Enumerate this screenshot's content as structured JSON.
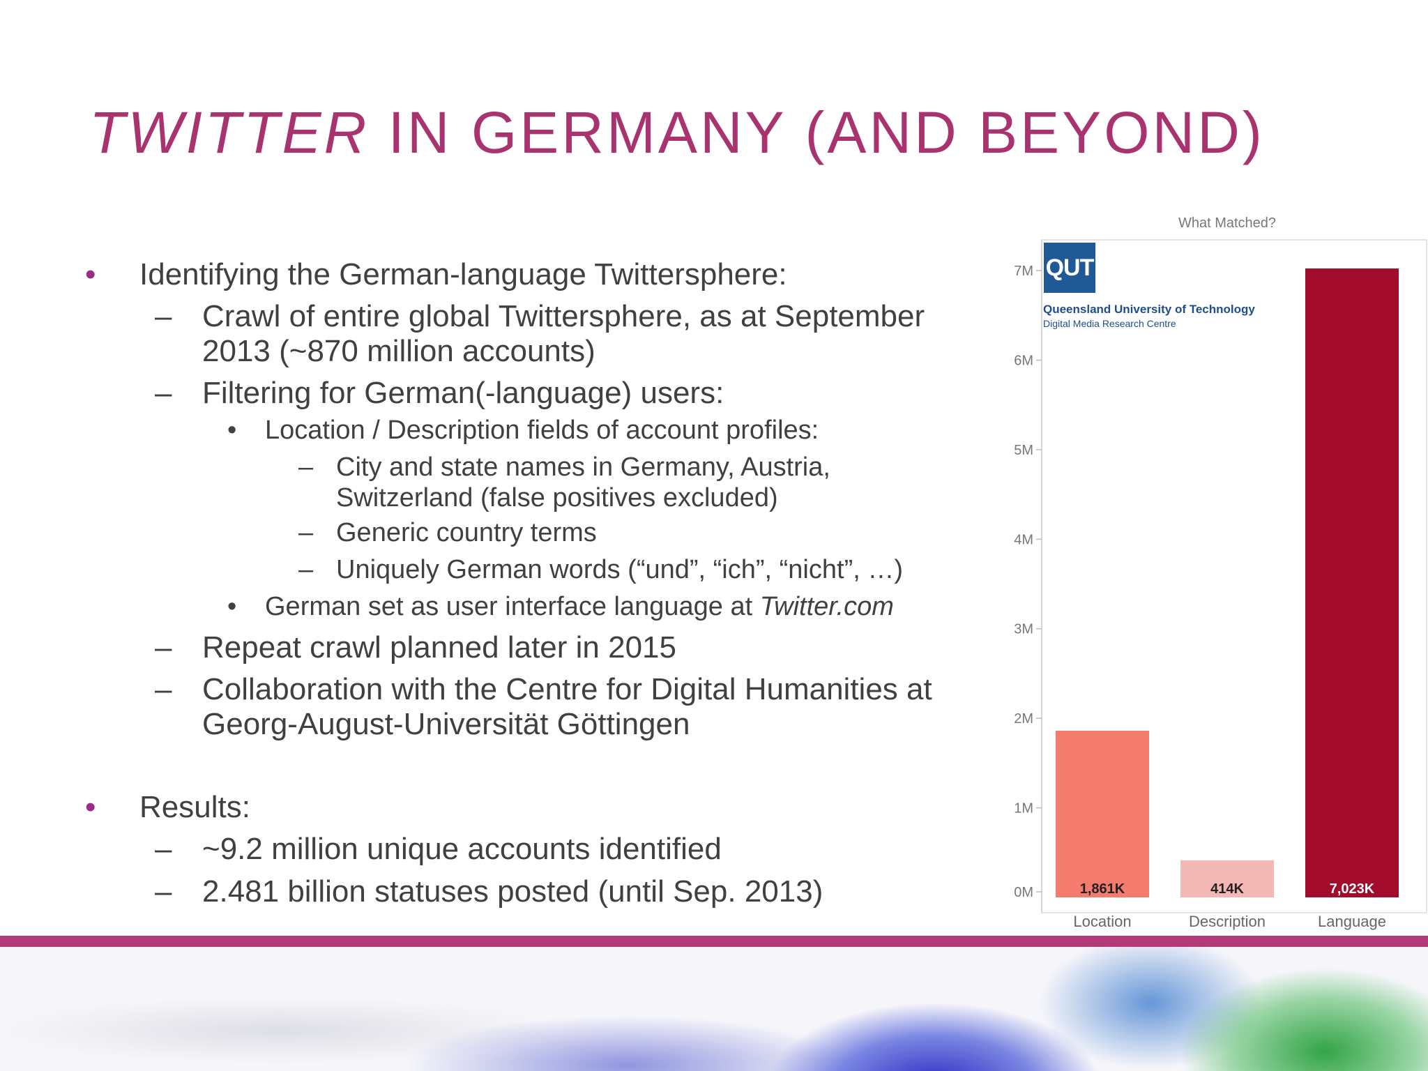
{
  "slide": {
    "title_italic": "TWITTER",
    "title_rest": " IN GERMANY (AND BEYOND)",
    "accent_color": "#a8336f",
    "bullets": [
      {
        "level": 1,
        "text": "Identifying the German-language Twittersphere:"
      },
      {
        "level": 2,
        "text": "Crawl of entire global Twittersphere, as at September"
      },
      {
        "level": 2,
        "text": "2013 (~870 million accounts)",
        "continuation": true
      },
      {
        "level": 2,
        "text": "Filtering for German(-language) users:"
      },
      {
        "level": 3,
        "text": "Location / Description fields of account profiles:"
      },
      {
        "level": 4,
        "text": "City and state names in Germany, Austria,"
      },
      {
        "level": 4,
        "text": "Switzerland (false positives excluded)",
        "continuation": true
      },
      {
        "level": 4,
        "text": "Generic country terms"
      },
      {
        "level": 4,
        "text": "Uniquely German words (“und”, “ich”, “nicht”, …)"
      },
      {
        "level": 3,
        "text": "German set as user interface language at ",
        "italic_suffix": "Twitter.com"
      },
      {
        "level": 2,
        "text": "Repeat crawl planned later in 2015"
      },
      {
        "level": 2,
        "text": "Collaboration with the Centre for Digital Humanities at"
      },
      {
        "level": 2,
        "text": "Georg-August-Universität Göttingen",
        "continuation": true
      },
      {
        "level": 1,
        "text": "Results:"
      },
      {
        "level": 2,
        "text": "~9.2 million unique accounts identified"
      },
      {
        "level": 2,
        "text": "2.481 billion statuses posted (until Sep. 2013)"
      }
    ],
    "markers": {
      "level1": "•",
      "level2": "–",
      "level3": "•",
      "level4": "–"
    }
  },
  "logo": {
    "mark": "QUT",
    "name": "Queensland University of Technology",
    "unit": "Digital Media Research Centre"
  },
  "chart_data": {
    "type": "bar",
    "title": "What Matched?",
    "categories": [
      "Location",
      "Description",
      "Language"
    ],
    "values": [
      1861000,
      414000,
      7023000
    ],
    "value_labels": [
      "1,861K",
      "414K",
      "7,023K"
    ],
    "colors": [
      "#f47c6f",
      "#f3b8b4",
      "#a30b2c"
    ],
    "value_label_colors": [
      "#222222",
      "#222222",
      "#ffffff"
    ],
    "ylim": [
      0,
      7000000
    ],
    "yticks": [
      0,
      1000000,
      2000000,
      3000000,
      4000000,
      5000000,
      6000000,
      7000000
    ],
    "ytick_labels": [
      "0M",
      "1M",
      "2M",
      "3M",
      "4M",
      "5M",
      "6M",
      "7M"
    ],
    "xlabel": "",
    "ylabel": "",
    "grid": false
  }
}
